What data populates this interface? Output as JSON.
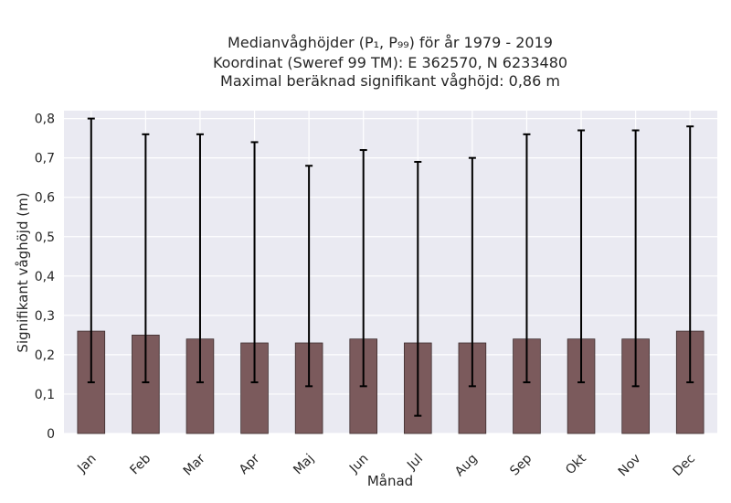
{
  "chart_data": {
    "type": "bar",
    "title_lines": [
      "Medianvåghöjder (P₁, P₉₉) för år 1979 - 2019",
      "Koordinat (Sweref 99 TM): E 362570, N 6233480",
      "Maximal beräknad signifikant våghöjd: 0,86 m"
    ],
    "xlabel": "Månad",
    "ylabel": "Signifikant våghöjd (m)",
    "categories": [
      "Jan",
      "Feb",
      "Mar",
      "Apr",
      "Maj",
      "Jun",
      "Jul",
      "Aug",
      "Sep",
      "Okt",
      "Nov",
      "Dec"
    ],
    "series": [
      {
        "values": [
          0.26,
          0.25,
          0.24,
          0.23,
          0.23,
          0.24,
          0.23,
          0.23,
          0.24,
          0.24,
          0.24,
          0.26
        ],
        "lower": [
          0.13,
          0.13,
          0.13,
          0.13,
          0.12,
          0.12,
          0.045,
          0.12,
          0.13,
          0.13,
          0.12,
          0.13
        ],
        "upper": [
          0.8,
          0.76,
          0.76,
          0.74,
          0.68,
          0.72,
          0.69,
          0.7,
          0.76,
          0.77,
          0.77,
          0.78
        ],
        "color": "#7b5a5c"
      }
    ],
    "ylim": [
      0,
      0.82
    ],
    "yticks": [
      0,
      0.1,
      0.2,
      0.3,
      0.4,
      0.5,
      0.6,
      0.7,
      0.8
    ],
    "ytick_labels": [
      "0",
      "0,1",
      "0,2",
      "0,3",
      "0,4",
      "0,5",
      "0,6",
      "0,7",
      "0,8"
    ],
    "grid": true,
    "plot_background": "#eaeaf2",
    "grid_color": "#ffffff",
    "error_bar_color": "#000000"
  }
}
